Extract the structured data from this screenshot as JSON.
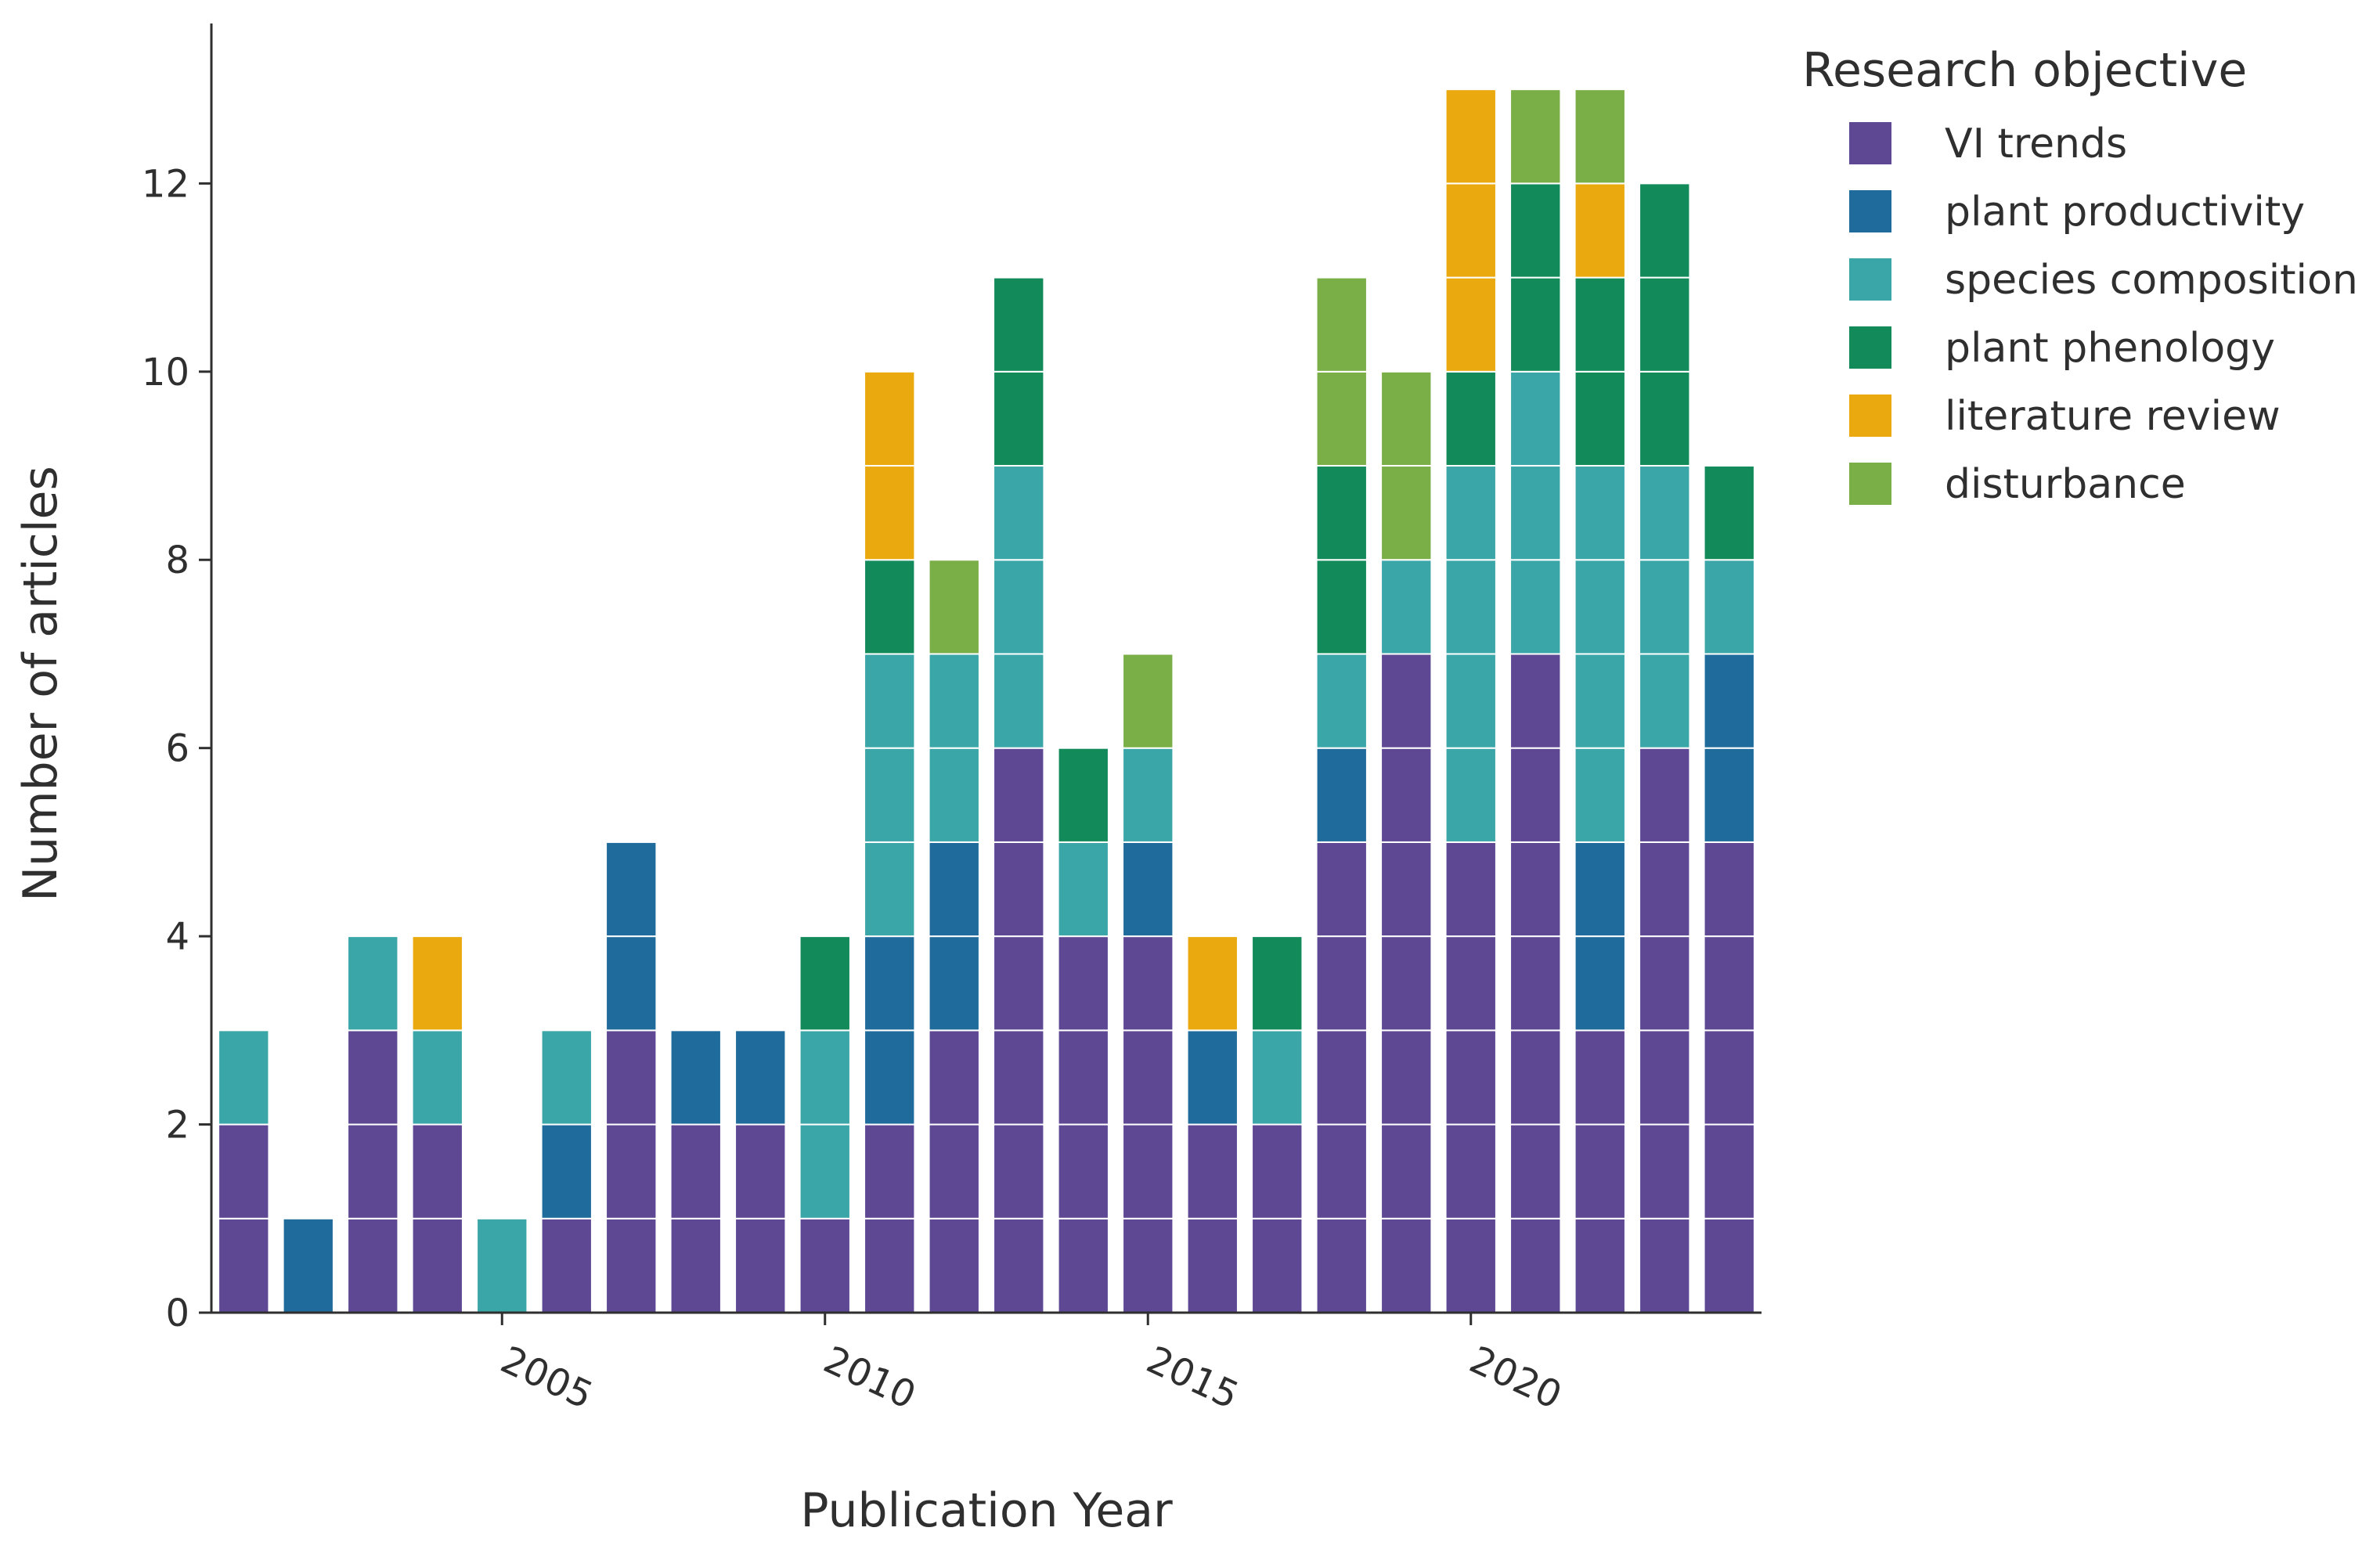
{
  "chart_data": {
    "type": "bar",
    "stacked": true,
    "title": "",
    "xlabel": "Publication Year",
    "ylabel": "Number of articles",
    "legend_title": "Research objective",
    "legend_position": "top-right",
    "xlim": [
      2000.5,
      2024.5
    ],
    "ylim": [
      0,
      13.7
    ],
    "x_ticks": [
      2005,
      2010,
      2015,
      2020
    ],
    "y_ticks": [
      0,
      2,
      4,
      6,
      8,
      10,
      12
    ],
    "categories": [
      2001,
      2002,
      2003,
      2004,
      2005,
      2006,
      2007,
      2008,
      2009,
      2010,
      2011,
      2012,
      2013,
      2014,
      2015,
      2016,
      2017,
      2018,
      2019,
      2020,
      2021,
      2022,
      2023,
      2024
    ],
    "series": [
      {
        "name": "VI trends",
        "color": "#5e4793",
        "values": [
          2,
          0,
          3,
          2,
          0,
          1,
          3,
          2,
          2,
          1,
          2,
          3,
          6,
          4,
          4,
          2,
          2,
          5,
          7,
          5,
          7,
          3,
          6,
          5
        ]
      },
      {
        "name": "plant productivity",
        "color": "#1f6b9b",
        "values": [
          0,
          1,
          0,
          0,
          0,
          1,
          2,
          1,
          1,
          0,
          2,
          2,
          0,
          0,
          1,
          1,
          0,
          1,
          0,
          0,
          0,
          2,
          0,
          2
        ]
      },
      {
        "name": "species composition",
        "color": "#3aa6a8",
        "values": [
          1,
          0,
          1,
          1,
          1,
          1,
          0,
          0,
          0,
          2,
          3,
          2,
          3,
          1,
          1,
          0,
          1,
          1,
          1,
          4,
          3,
          4,
          3,
          1
        ]
      },
      {
        "name": "plant phenology",
        "color": "#128a5a",
        "values": [
          0,
          0,
          0,
          0,
          0,
          0,
          0,
          0,
          0,
          1,
          1,
          0,
          2,
          1,
          0,
          0,
          1,
          2,
          0,
          1,
          2,
          2,
          3,
          1
        ]
      },
      {
        "name": "literature review",
        "color": "#e9a90f",
        "values": [
          0,
          0,
          0,
          1,
          0,
          0,
          0,
          0,
          0,
          0,
          2,
          0,
          0,
          0,
          0,
          1,
          0,
          0,
          0,
          3,
          0,
          1,
          0,
          0
        ]
      },
      {
        "name": "disturbance",
        "color": "#7aae46",
        "values": [
          0,
          0,
          0,
          0,
          0,
          0,
          0,
          0,
          0,
          0,
          0,
          1,
          0,
          0,
          1,
          0,
          0,
          2,
          2,
          0,
          1,
          1,
          0,
          0
        ]
      }
    ]
  }
}
